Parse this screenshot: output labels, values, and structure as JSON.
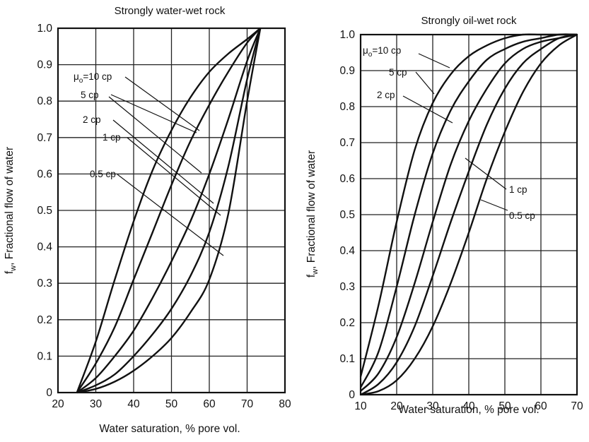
{
  "chart_data": [
    {
      "type": "line",
      "title": "Strongly water-wet rock",
      "xlabel": "Water saturation, % pore vol.",
      "ylabel_main": "f",
      "ylabel_sub": "w",
      "ylabel_rest": ", Fractional flow of water",
      "xlim": [
        20,
        80
      ],
      "ylim": [
        0,
        1.0
      ],
      "x_ticks": [
        "20",
        "30",
        "40",
        "50",
        "60",
        "70",
        "80"
      ],
      "y_ticks": [
        "0",
        "0.1",
        "0.2",
        "0.3",
        "0.4",
        "0.5",
        "0.6",
        "0.7",
        "0.8",
        "0.9",
        "1.0"
      ],
      "grid": true,
      "mu_prefix": "μ",
      "mu_sub": "o",
      "series": [
        {
          "name": "=10 cp",
          "x": [
            25,
            30,
            35,
            40,
            45,
            50,
            55,
            60,
            65,
            70,
            73.5
          ],
          "y": [
            0,
            0.14,
            0.31,
            0.47,
            0.61,
            0.72,
            0.81,
            0.88,
            0.93,
            0.97,
            1.0
          ]
        },
        {
          "name": "5 cp",
          "x": [
            25,
            30,
            35,
            40,
            45,
            50,
            55,
            60,
            65,
            70,
            73.5
          ],
          "y": [
            0,
            0.08,
            0.18,
            0.31,
            0.44,
            0.57,
            0.69,
            0.79,
            0.88,
            0.96,
            1.0
          ]
        },
        {
          "name": "2 cp",
          "x": [
            25,
            30,
            35,
            40,
            45,
            50,
            55,
            60,
            65,
            70,
            73.5
          ],
          "y": [
            0,
            0.04,
            0.1,
            0.17,
            0.26,
            0.36,
            0.47,
            0.6,
            0.75,
            0.91,
            1.0
          ]
        },
        {
          "name": "1 cp",
          "x": [
            25,
            30,
            35,
            40,
            45,
            50,
            55,
            60,
            65,
            70,
            73.5
          ],
          "y": [
            0,
            0.02,
            0.05,
            0.1,
            0.16,
            0.23,
            0.32,
            0.44,
            0.62,
            0.86,
            1.0
          ]
        },
        {
          "name": "0.5 cp",
          "x": [
            25,
            30,
            35,
            40,
            45,
            50,
            55,
            60,
            65,
            70,
            73.5
          ],
          "y": [
            0,
            0.01,
            0.03,
            0.06,
            0.1,
            0.15,
            0.22,
            0.31,
            0.49,
            0.8,
            1.0
          ]
        }
      ]
    },
    {
      "type": "line",
      "title": "Strongly oil-wet rock",
      "xlabel": "Water saturation, % pore vol.",
      "ylabel_main": "f",
      "ylabel_sub": "w",
      "ylabel_rest": ", Fractional flow of water",
      "xlim": [
        10,
        70
      ],
      "ylim": [
        0,
        1.0
      ],
      "x_ticks": [
        "10",
        "20",
        "30",
        "40",
        "50",
        "60",
        "70"
      ],
      "y_ticks": [
        "0",
        "0.1",
        "0.2",
        "0.3",
        "0.4",
        "0.5",
        "0.6",
        "0.7",
        "0.8",
        "0.9",
        "1.0"
      ],
      "grid": true,
      "mu_prefix": "μ",
      "mu_sub": "o",
      "series": [
        {
          "name": "=10 cp",
          "x": [
            10,
            15,
            20,
            25,
            30,
            35,
            40,
            45,
            50,
            55,
            60,
            65,
            70
          ],
          "y": [
            0.05,
            0.25,
            0.48,
            0.68,
            0.81,
            0.89,
            0.94,
            0.97,
            0.99,
            1.0,
            1.0,
            1.0,
            1.0
          ]
        },
        {
          "name": "5 cp",
          "x": [
            10,
            15,
            20,
            25,
            30,
            35,
            40,
            45,
            50,
            55,
            60,
            65,
            70
          ],
          "y": [
            0.02,
            0.12,
            0.3,
            0.5,
            0.67,
            0.79,
            0.87,
            0.93,
            0.96,
            0.98,
            0.99,
            1.0,
            1.0
          ]
        },
        {
          "name": "2 cp",
          "x": [
            10,
            15,
            20,
            25,
            30,
            35,
            40,
            45,
            50,
            55,
            60,
            65,
            70
          ],
          "y": [
            0.01,
            0.06,
            0.16,
            0.31,
            0.48,
            0.64,
            0.76,
            0.85,
            0.92,
            0.96,
            0.98,
            0.99,
            1.0
          ]
        },
        {
          "name": "1 cp",
          "x": [
            10,
            15,
            20,
            25,
            30,
            35,
            40,
            45,
            50,
            55,
            60,
            65,
            70
          ],
          "y": [
            0.0,
            0.03,
            0.09,
            0.19,
            0.33,
            0.48,
            0.62,
            0.75,
            0.85,
            0.92,
            0.96,
            0.99,
            1.0
          ]
        },
        {
          "name": "0.5 cp",
          "x": [
            10,
            15,
            20,
            25,
            30,
            35,
            40,
            45,
            50,
            55,
            60,
            65,
            70
          ],
          "y": [
            0.0,
            0.01,
            0.04,
            0.1,
            0.19,
            0.31,
            0.45,
            0.6,
            0.73,
            0.84,
            0.92,
            0.97,
            1.0
          ]
        }
      ]
    }
  ]
}
